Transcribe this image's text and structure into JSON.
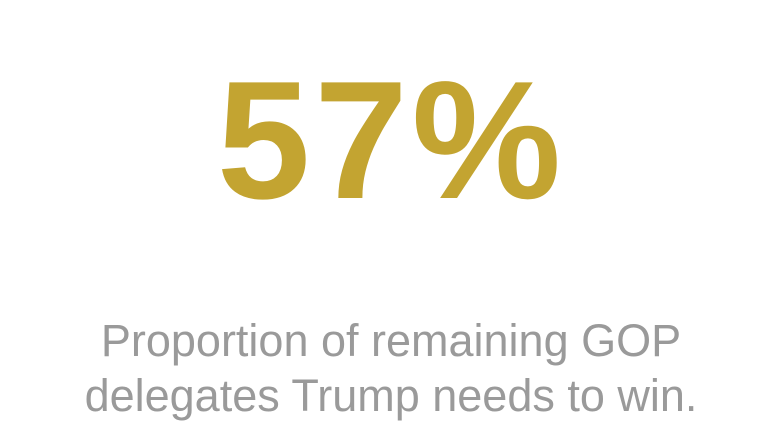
{
  "stat": {
    "value": "57%",
    "caption": [
      "Proportion of remaining GOP",
      "delegates Trump needs to win."
    ]
  }
}
